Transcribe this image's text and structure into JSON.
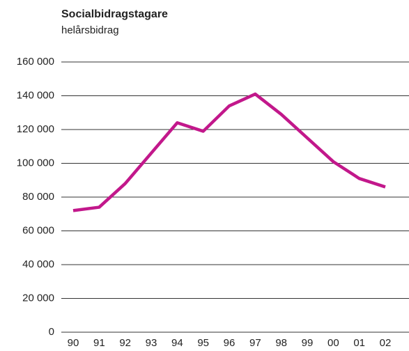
{
  "chart_data": {
    "type": "line",
    "title": "Socialbidragstagare",
    "subtitle": "helårsbidrag",
    "categories": [
      "90",
      "91",
      "92",
      "93",
      "94",
      "95",
      "96",
      "97",
      "98",
      "99",
      "00",
      "01",
      "02"
    ],
    "series": [
      {
        "color": "#c2188b",
        "values": [
          72000,
          74000,
          88000,
          106000,
          124000,
          119000,
          134000,
          141000,
          129000,
          115000,
          101000,
          91000,
          86000
        ]
      }
    ],
    "ylim": [
      0,
      160000
    ],
    "yticks": [
      {
        "value": 0,
        "label": "0"
      },
      {
        "value": 20000,
        "label": "20 000"
      },
      {
        "value": 40000,
        "label": "40 000"
      },
      {
        "value": 60000,
        "label": "60 000"
      },
      {
        "value": 80000,
        "label": "80 000"
      },
      {
        "value": 100000,
        "label": "100 000"
      },
      {
        "value": 120000,
        "label": "120 000"
      },
      {
        "value": 140000,
        "label": "140 000"
      },
      {
        "value": 160000,
        "label": "160 000"
      }
    ],
    "grid": true
  }
}
